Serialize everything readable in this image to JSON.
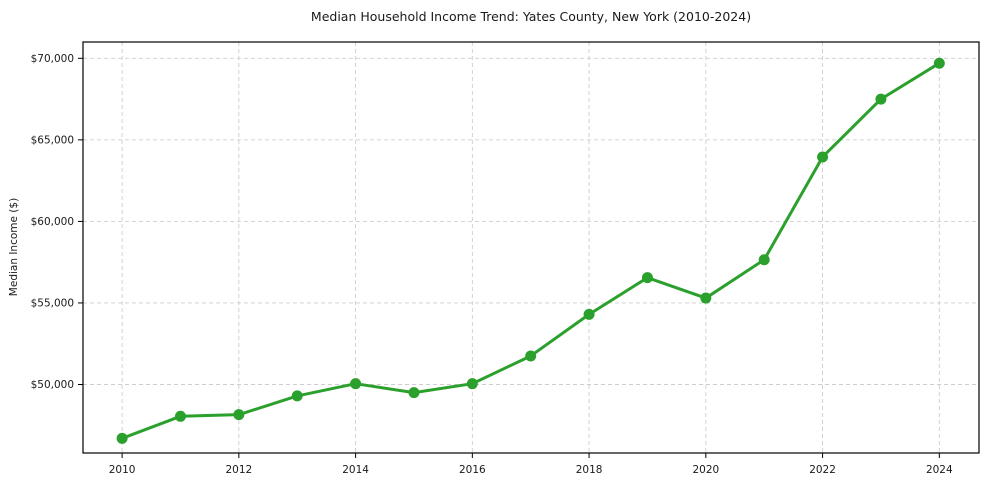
{
  "figure": {
    "background": "#ffffff"
  },
  "chart_data": {
    "type": "line",
    "title": "Median Household Income Trend: Yates County, New York (2010-2024)",
    "xlabel": "",
    "ylabel": "Median Income ($)",
    "x": [
      2010,
      2011,
      2012,
      2013,
      2014,
      2015,
      2016,
      2017,
      2018,
      2019,
      2020,
      2021,
      2022,
      2023,
      2024
    ],
    "values": [
      46700,
      48050,
      48150,
      49300,
      50050,
      49500,
      50050,
      51750,
      54300,
      56550,
      55300,
      57650,
      63950,
      67500,
      69700
    ],
    "xlim": [
      2009.33,
      2024.68
    ],
    "ylim": [
      45800,
      71000
    ],
    "x_ticks": [
      2010,
      2012,
      2014,
      2016,
      2018,
      2020,
      2022,
      2024
    ],
    "x_tick_labels": [
      "2010",
      "2012",
      "2014",
      "2016",
      "2018",
      "2020",
      "2022",
      "2024"
    ],
    "y_ticks": [
      50000,
      55000,
      60000,
      65000,
      70000
    ],
    "y_tick_labels": [
      "$50,000",
      "$55,000",
      "$60,000",
      "$65,000",
      "$70,000"
    ],
    "grid": true,
    "grid_style": "dashed",
    "legend": "none",
    "line_color": "#2ca02c",
    "marker": "circle",
    "grid_color": "#cdcdcd",
    "axis_color": "#000000",
    "text_color": "#1a1a1a"
  }
}
